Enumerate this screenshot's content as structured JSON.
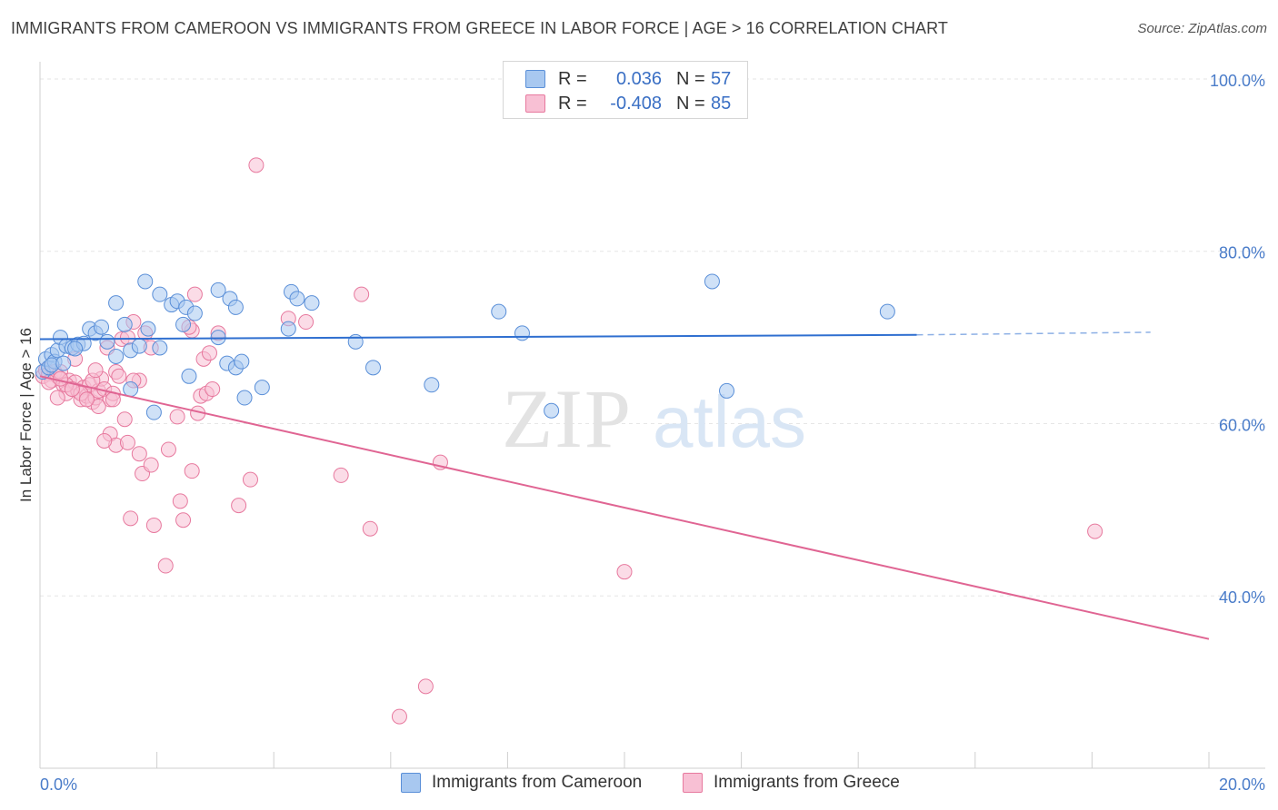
{
  "header": {
    "title": "IMMIGRANTS FROM CAMEROON VS IMMIGRANTS FROM GREECE IN LABOR FORCE | AGE > 16 CORRELATION CHART",
    "source": "Source: ZipAtlas.com"
  },
  "watermark": {
    "zip": "ZIP",
    "atlas": "atlas"
  },
  "legend": {
    "rows": [
      {
        "r_label": "R =",
        "r_value": "0.036",
        "n_label": "N =",
        "n_value": "57",
        "color": "#a8c8f0",
        "border": "#5a8fd8"
      },
      {
        "r_label": "R =",
        "r_value": "-0.408",
        "n_label": "N =",
        "n_value": "85",
        "color": "#f8c0d4",
        "border": "#e7799e"
      }
    ]
  },
  "bottom_legend": {
    "cameroon": "Immigrants from Cameroon",
    "greece": "Immigrants from Greece"
  },
  "colors": {
    "cameroon_fill": "#a8c8f0",
    "cameroon_stroke": "#5a8fd8",
    "cameroon_line": "#2f6fd0",
    "greece_fill": "#f8c0d4",
    "greece_stroke": "#e7799e",
    "greece_line": "#e06593",
    "grid": "#e6e6e6",
    "axis_label": "#4a7cc9"
  },
  "chart_data": {
    "type": "scatter",
    "title": "IMMIGRANTS FROM CAMEROON VS IMMIGRANTS FROM GREECE IN LABOR FORCE | AGE > 16 CORRELATION CHART",
    "xlabel": "",
    "ylabel": "In Labor Force | Age > 16",
    "xlim": [
      0,
      20
    ],
    "ylim": [
      20,
      102
    ],
    "x_tick_labels": [
      "0.0%",
      "20.0%"
    ],
    "y_ticks": [
      40,
      60,
      80,
      100
    ],
    "y_tick_labels": [
      "40.0%",
      "60.0%",
      "80.0%",
      "100.0%"
    ],
    "grid": true,
    "legend_position": "top-center",
    "series": [
      {
        "name": "Immigrants from Cameroon",
        "points": [
          [
            0.05,
            66.0
          ],
          [
            0.1,
            67.5
          ],
          [
            0.15,
            66.5
          ],
          [
            0.2,
            68.0
          ],
          [
            0.25,
            67.2
          ],
          [
            0.3,
            68.5
          ],
          [
            0.35,
            70.0
          ],
          [
            0.45,
            69.0
          ],
          [
            0.55,
            68.8
          ],
          [
            0.65,
            69.2
          ],
          [
            0.75,
            69.3
          ],
          [
            0.85,
            71.0
          ],
          [
            0.95,
            70.5
          ],
          [
            1.05,
            71.2
          ],
          [
            1.15,
            69.5
          ],
          [
            1.3,
            67.8
          ],
          [
            1.45,
            71.5
          ],
          [
            1.55,
            68.5
          ],
          [
            1.7,
            69.0
          ],
          [
            1.85,
            71.0
          ],
          [
            2.05,
            68.8
          ],
          [
            1.3,
            74.0
          ],
          [
            1.8,
            76.5
          ],
          [
            2.05,
            75.0
          ],
          [
            2.25,
            73.8
          ],
          [
            2.35,
            74.2
          ],
          [
            2.5,
            73.5
          ],
          [
            2.65,
            72.8
          ],
          [
            2.45,
            71.5
          ],
          [
            3.05,
            75.5
          ],
          [
            3.25,
            74.5
          ],
          [
            3.35,
            73.5
          ],
          [
            3.05,
            70.0
          ],
          [
            2.55,
            65.5
          ],
          [
            3.2,
            67.0
          ],
          [
            3.35,
            66.5
          ],
          [
            3.45,
            67.2
          ],
          [
            3.5,
            63.0
          ],
          [
            3.8,
            64.2
          ],
          [
            4.3,
            75.3
          ],
          [
            4.4,
            74.5
          ],
          [
            4.65,
            74.0
          ],
          [
            4.25,
            71.0
          ],
          [
            5.4,
            69.5
          ],
          [
            5.7,
            66.5
          ],
          [
            6.7,
            64.5
          ],
          [
            7.85,
            73.0
          ],
          [
            8.25,
            70.5
          ],
          [
            8.75,
            61.5
          ],
          [
            11.5,
            76.5
          ],
          [
            11.75,
            63.8
          ],
          [
            14.5,
            73.0
          ],
          [
            1.55,
            64.0
          ],
          [
            1.95,
            61.3
          ],
          [
            0.2,
            66.8
          ],
          [
            0.4,
            67.0
          ],
          [
            0.6,
            68.7
          ]
        ]
      },
      {
        "name": "Immigrants from Greece",
        "points": [
          [
            0.05,
            65.5
          ],
          [
            0.1,
            66.2
          ],
          [
            0.15,
            65.8
          ],
          [
            0.2,
            65.0
          ],
          [
            0.25,
            66.0
          ],
          [
            0.3,
            65.5
          ],
          [
            0.35,
            66.0
          ],
          [
            0.4,
            64.5
          ],
          [
            0.45,
            63.5
          ],
          [
            0.5,
            65.0
          ],
          [
            0.55,
            64.0
          ],
          [
            0.6,
            64.8
          ],
          [
            0.65,
            63.8
          ],
          [
            0.7,
            62.8
          ],
          [
            0.75,
            64.2
          ],
          [
            0.8,
            63.2
          ],
          [
            0.85,
            64.5
          ],
          [
            0.9,
            62.5
          ],
          [
            0.95,
            63.0
          ],
          [
            1.0,
            63.8
          ],
          [
            1.05,
            65.2
          ],
          [
            1.1,
            64.0
          ],
          [
            1.15,
            68.8
          ],
          [
            1.2,
            62.8
          ],
          [
            1.25,
            63.5
          ],
          [
            1.3,
            66.0
          ],
          [
            1.35,
            65.5
          ],
          [
            1.4,
            69.8
          ],
          [
            1.5,
            70.0
          ],
          [
            1.6,
            71.8
          ],
          [
            1.7,
            65.0
          ],
          [
            1.8,
            70.5
          ],
          [
            1.9,
            68.8
          ],
          [
            0.3,
            63.0
          ],
          [
            0.6,
            67.5
          ],
          [
            0.9,
            65.0
          ],
          [
            1.2,
            58.8
          ],
          [
            1.3,
            57.5
          ],
          [
            1.5,
            57.8
          ],
          [
            1.7,
            56.5
          ],
          [
            1.75,
            54.2
          ],
          [
            1.9,
            55.2
          ],
          [
            1.55,
            49.0
          ],
          [
            1.95,
            48.2
          ],
          [
            2.2,
            57.0
          ],
          [
            2.4,
            51.0
          ],
          [
            2.45,
            48.8
          ],
          [
            2.35,
            60.8
          ],
          [
            2.6,
            54.5
          ],
          [
            2.7,
            61.2
          ],
          [
            2.75,
            63.2
          ],
          [
            2.85,
            63.5
          ],
          [
            2.95,
            64.0
          ],
          [
            2.8,
            67.5
          ],
          [
            2.9,
            68.2
          ],
          [
            2.6,
            70.8
          ],
          [
            3.05,
            70.5
          ],
          [
            2.65,
            75.0
          ],
          [
            2.15,
            43.5
          ],
          [
            3.4,
            50.5
          ],
          [
            3.6,
            53.5
          ],
          [
            3.7,
            90.0
          ],
          [
            4.25,
            72.2
          ],
          [
            4.55,
            71.8
          ],
          [
            5.15,
            54.0
          ],
          [
            5.5,
            75.0
          ],
          [
            5.65,
            47.8
          ],
          [
            6.6,
            29.5
          ],
          [
            6.85,
            55.5
          ],
          [
            6.15,
            26.0
          ],
          [
            10.0,
            42.8
          ],
          [
            18.05,
            47.5
          ],
          [
            0.45,
            64.5
          ],
          [
            0.7,
            63.5
          ],
          [
            1.0,
            62.0
          ],
          [
            1.1,
            58.0
          ],
          [
            0.8,
            62.8
          ],
          [
            0.15,
            64.8
          ],
          [
            0.35,
            65.2
          ],
          [
            0.55,
            64.0
          ],
          [
            0.95,
            66.2
          ],
          [
            1.25,
            62.8
          ],
          [
            1.6,
            65.0
          ],
          [
            1.45,
            60.5
          ],
          [
            2.55,
            71.2
          ]
        ]
      }
    ],
    "trend_lines": [
      {
        "series": "Immigrants from Cameroon",
        "x0": 0.0,
        "y0": 69.8,
        "x1": 15.0,
        "y1": 70.3,
        "dash_x_end": 19.0,
        "dash_y_end": 70.6
      },
      {
        "series": "Immigrants from Greece",
        "x0": 0.0,
        "y0": 65.5,
        "x1": 20.0,
        "y1": 35.0
      }
    ]
  }
}
